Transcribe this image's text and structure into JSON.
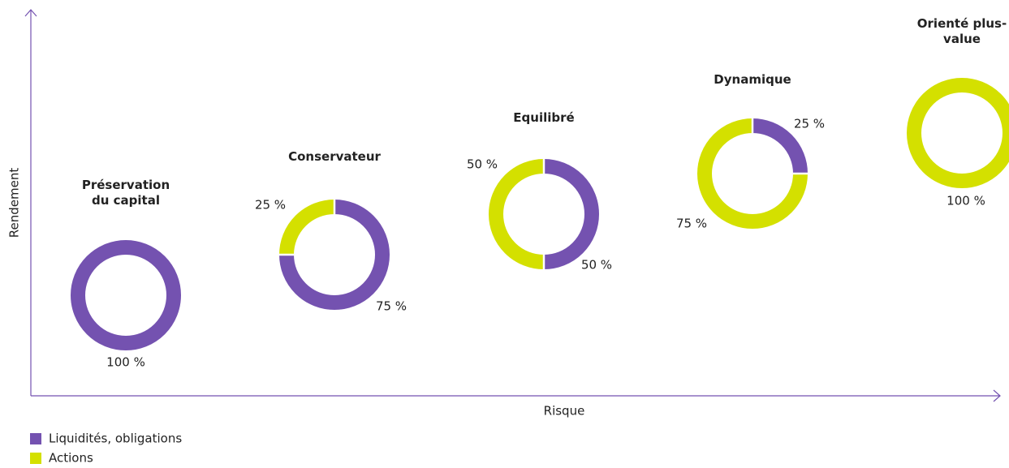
{
  "chart_data": {
    "type": "donut",
    "x_label": "Risque",
    "y_label": "Rendement",
    "categories": [
      "Préservation du capital",
      "Conservateur",
      "Equilibré",
      "Dynamique",
      "Orienté plus-value"
    ],
    "series": [
      {
        "name": "Liquidités, obligations",
        "color": "#7452b0",
        "values": [
          100,
          75,
          50,
          25,
          0
        ],
        "value_labels": [
          "100 %",
          "75 %",
          "50 %",
          "25 %",
          null
        ]
      },
      {
        "name": "Actions",
        "color": "#d4e000",
        "values": [
          0,
          25,
          50,
          75,
          100
        ],
        "value_labels": [
          null,
          "25 %",
          "50 %",
          "75 %",
          "100 %"
        ]
      }
    ]
  }
}
